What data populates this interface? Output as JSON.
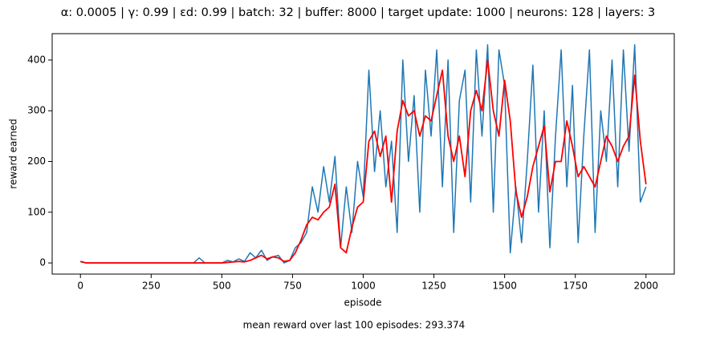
{
  "chart_data": {
    "type": "line",
    "title": "α: 0.0005 | γ: 0.99 | εd: 0.99 | batch: 32 | buffer: 8000 | target update: 1000 | neurons: 128 | layers: 3",
    "xlabel": "episode",
    "ylabel": "reward earned",
    "annotation": "mean reward over last 100 episodes: 293.374",
    "x": [
      0,
      20,
      40,
      60,
      80,
      100,
      120,
      140,
      160,
      180,
      200,
      220,
      240,
      260,
      280,
      300,
      320,
      340,
      360,
      380,
      400,
      420,
      440,
      460,
      480,
      500,
      520,
      540,
      560,
      580,
      600,
      620,
      640,
      660,
      680,
      700,
      720,
      740,
      760,
      780,
      800,
      820,
      840,
      860,
      880,
      900,
      920,
      940,
      960,
      980,
      1000,
      1020,
      1040,
      1060,
      1080,
      1100,
      1120,
      1140,
      1160,
      1180,
      1200,
      1220,
      1240,
      1260,
      1280,
      1300,
      1320,
      1340,
      1360,
      1380,
      1400,
      1420,
      1440,
      1460,
      1480,
      1500,
      1520,
      1540,
      1560,
      1580,
      1600,
      1620,
      1640,
      1660,
      1680,
      1700,
      1720,
      1740,
      1760,
      1780,
      1800,
      1820,
      1840,
      1860,
      1880,
      1900,
      1920,
      1940,
      1960,
      1980,
      2000
    ],
    "series": [
      {
        "color": "#1f77b4",
        "width": 1.5,
        "values": [
          2,
          0,
          0,
          0,
          0,
          0,
          0,
          0,
          0,
          0,
          0,
          0,
          0,
          0,
          0,
          0,
          0,
          0,
          0,
          0,
          0,
          10,
          0,
          0,
          0,
          0,
          5,
          2,
          8,
          3,
          20,
          10,
          25,
          5,
          12,
          15,
          0,
          5,
          30,
          40,
          60,
          150,
          100,
          190,
          120,
          210,
          30,
          150,
          60,
          200,
          130,
          380,
          180,
          300,
          150,
          240,
          60,
          400,
          200,
          330,
          100,
          380,
          250,
          420,
          150,
          400,
          60,
          320,
          380,
          120,
          420,
          250,
          430,
          100,
          420,
          350,
          20,
          150,
          40,
          200,
          390,
          100,
          300,
          30,
          250,
          420,
          150,
          350,
          40,
          250,
          420,
          60,
          300,
          200,
          400,
          150,
          420,
          220,
          430,
          120,
          150
        ]
      },
      {
        "color": "#ff0000",
        "width": 1.8,
        "values": [
          3,
          0,
          0,
          0,
          0,
          0,
          0,
          0,
          0,
          0,
          0,
          0,
          0,
          0,
          0,
          0,
          0,
          0,
          0,
          0,
          0,
          0,
          0,
          0,
          0,
          0,
          1,
          2,
          3,
          2,
          5,
          10,
          15,
          8,
          12,
          10,
          3,
          5,
          20,
          45,
          75,
          90,
          85,
          100,
          110,
          155,
          30,
          20,
          70,
          110,
          120,
          240,
          260,
          210,
          250,
          120,
          260,
          320,
          290,
          300,
          250,
          290,
          280,
          330,
          380,
          250,
          200,
          250,
          170,
          300,
          340,
          300,
          400,
          300,
          250,
          360,
          280,
          140,
          90,
          130,
          190,
          230,
          270,
          140,
          200,
          200,
          280,
          230,
          170,
          190,
          170,
          150,
          200,
          250,
          230,
          200,
          230,
          250,
          370,
          240,
          155
        ]
      }
    ],
    "xlim": [
      -100,
      2100
    ],
    "ylim": [
      -22,
      452
    ],
    "xticks": [
      0,
      250,
      500,
      750,
      1000,
      1250,
      1500,
      1750,
      2000
    ],
    "yticks": [
      0,
      100,
      200,
      300,
      400
    ]
  }
}
